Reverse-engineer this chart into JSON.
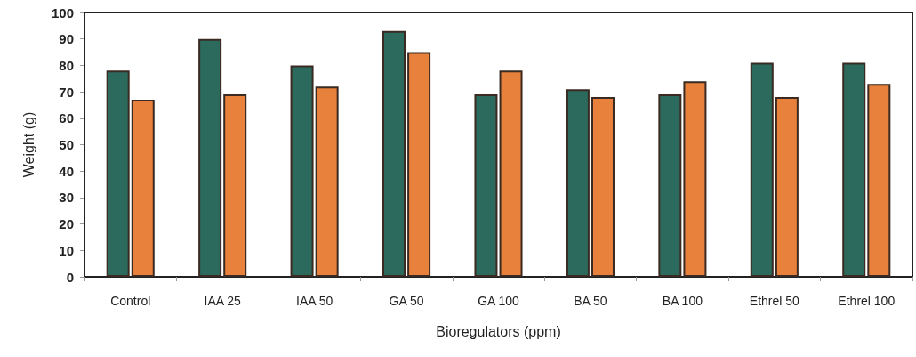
{
  "chart_data": {
    "type": "bar",
    "xlabel": "Bioregulators (ppm)",
    "ylabel": "Weight (g)",
    "categories": [
      "Control",
      "IAA 25",
      "IAA 50",
      "GA 50",
      "GA 100",
      "BA 50",
      "BA 100",
      "Ethrel 50",
      "Ethrel 100"
    ],
    "series": [
      {
        "color": "#2d6a5e",
        "values": [
          78,
          90,
          80,
          93,
          69,
          71,
          69,
          81,
          81
        ]
      },
      {
        "color": "#e8813c",
        "values": [
          67,
          69,
          72,
          85,
          78,
          68,
          74,
          68,
          73
        ]
      }
    ],
    "ylim": [
      0,
      100
    ],
    "yticks": [
      0,
      10,
      20,
      30,
      40,
      50,
      60,
      70,
      80,
      90,
      100
    ],
    "grid": false
  }
}
